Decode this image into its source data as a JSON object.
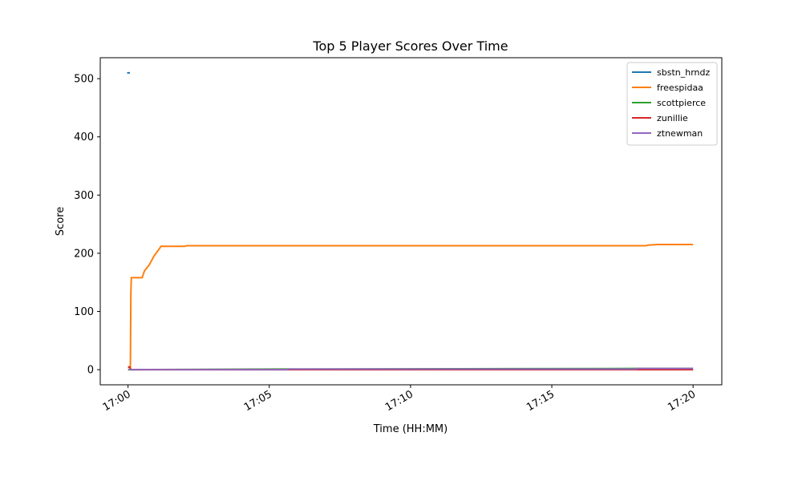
{
  "chart_data": {
    "type": "line",
    "title": "Top 5 Player Scores Over Time",
    "x_label": "Time (HH:MM)",
    "y_label": "Score",
    "xlim": [
      "16:59:01",
      "17:21:01"
    ],
    "xticks": [
      "17:00",
      "17:05",
      "17:10",
      "17:15",
      "17:20"
    ],
    "ylim": [
      -26,
      536
    ],
    "yticks": [
      0,
      100,
      200,
      300,
      400,
      500
    ],
    "legend": "upper right",
    "grid": false,
    "series": [
      {
        "name": "sbstn_hrndz",
        "color": "#1f77b4",
        "x": [
          "16:59:58",
          "17:00:04"
        ],
        "values": [
          510,
          510
        ]
      },
      {
        "name": "freespidaa",
        "color": "#ff7f0e",
        "x": [
          "17:00:00",
          "17:00:05",
          "17:00:06",
          "17:00:07",
          "17:00:30",
          "17:00:35",
          "17:00:45",
          "17:00:55",
          "17:01:05",
          "17:01:10",
          "17:02:00",
          "17:02:05",
          "17:18:20",
          "17:18:25",
          "17:18:45",
          "17:20:00"
        ],
        "values": [
          5,
          5,
          130,
          158,
          158,
          170,
          180,
          195,
          206,
          212,
          212,
          213,
          213,
          214,
          215,
          215
        ]
      },
      {
        "name": "scottpierce",
        "color": "#2ca02c",
        "x": [
          "17:00:00",
          "17:05:40",
          "17:18:00",
          "17:20:00"
        ],
        "values": [
          0,
          1,
          2,
          2
        ]
      },
      {
        "name": "zunillie",
        "color": "#d62728",
        "x": [
          "17:00:00",
          "17:00:04",
          "17:00:06",
          "17:20:00"
        ],
        "values": [
          4,
          4,
          0,
          0
        ]
      },
      {
        "name": "ztnewman",
        "color": "#9467bd",
        "x": [
          "17:00:02",
          "17:05:40",
          "17:05:41",
          "17:18:00",
          "17:18:01",
          "17:20:00"
        ],
        "values": [
          0,
          0,
          1,
          1,
          2,
          2
        ]
      }
    ]
  }
}
